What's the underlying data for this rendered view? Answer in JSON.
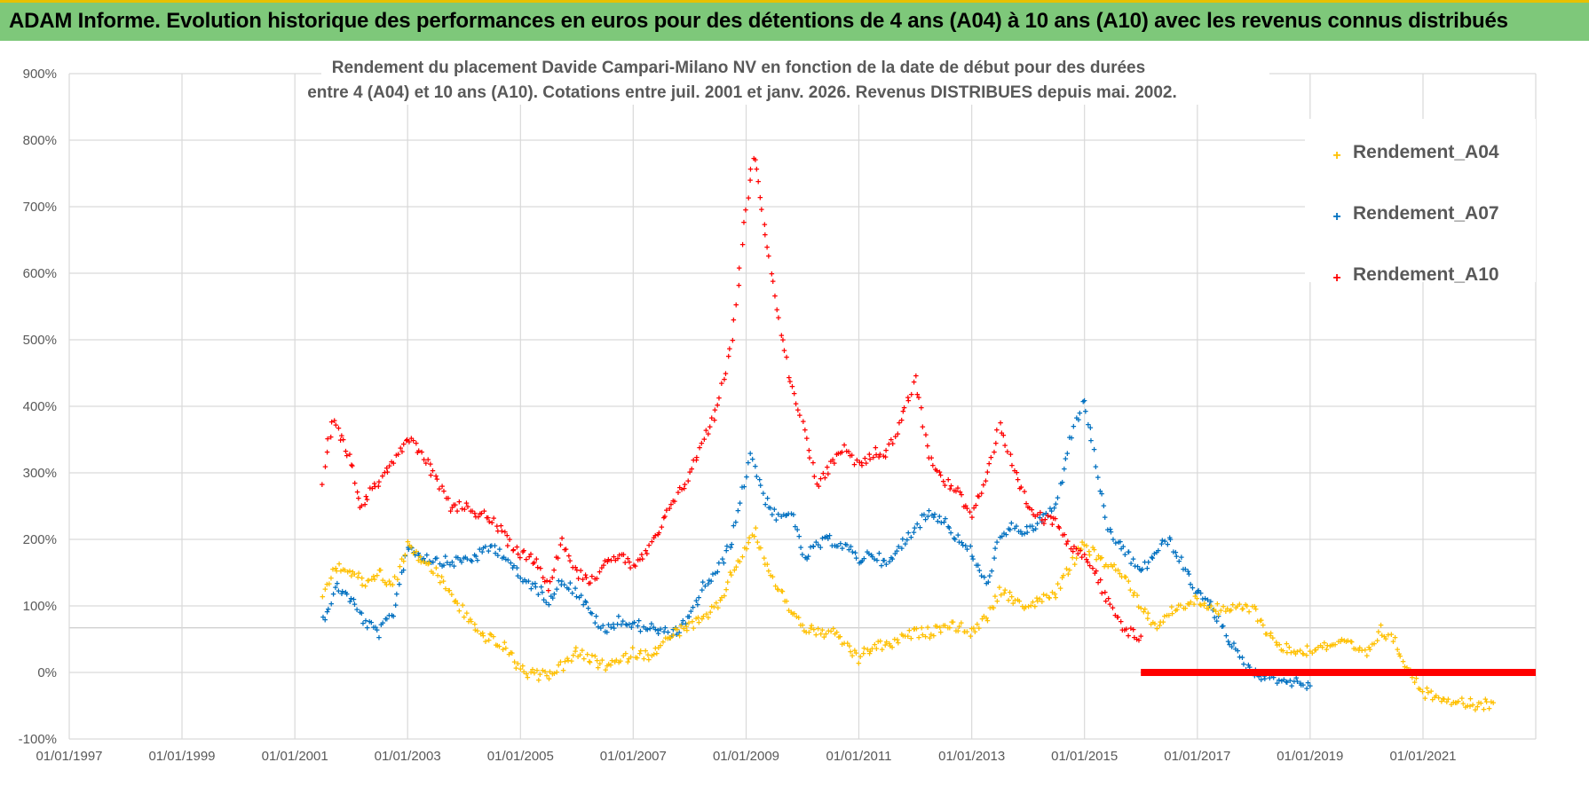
{
  "banner": {
    "title": "ADAM Informe. Evolution historique des performances en euros pour des détentions de 4 ans (A04) à 10 ans (A10) avec les revenus connus distribués",
    "background_color": "#7ec87a",
    "accent_color": "#e8c000"
  },
  "chart_data": {
    "type": "scatter",
    "title_lines": [
      "Rendement du placement Davide Campari-Milano NV en fonction de la date de début pour des durées",
      "entre 4 (A04) et 10 ans (A10).  Cotations entre juil. 2001 et janv. 2026. Revenus DISTRIBUES depuis mai. 2002."
    ],
    "x_axis": {
      "type": "date",
      "range": [
        "1997-01-01",
        "2023-01-01"
      ],
      "tick_labels": [
        "01/01/1997",
        "01/01/1999",
        "01/01/2001",
        "01/01/2003",
        "01/01/2005",
        "01/01/2007",
        "01/01/2009",
        "01/01/2011",
        "01/01/2013",
        "01/01/2015",
        "01/01/2017",
        "01/01/2019",
        "01/01/2021"
      ]
    },
    "y_axis": {
      "unit": "%",
      "range": [
        -100,
        900
      ],
      "tick_values": [
        -100,
        0,
        100,
        200,
        300,
        400,
        500,
        600,
        700,
        800,
        900
      ],
      "tick_labels": [
        "-100%",
        "0%",
        "100%",
        "200%",
        "300%",
        "400%",
        "500%",
        "600%",
        "700%",
        "800%",
        "900%"
      ]
    },
    "grid": true,
    "legend_position": "top-right",
    "marker": "+",
    "series": [
      {
        "name": "Rendement_A04",
        "color": "#ffc000",
        "points": [
          [
            "2001-07-01",
            120
          ],
          [
            "2001-10-01",
            160
          ],
          [
            "2002-01-01",
            150
          ],
          [
            "2002-04-01",
            135
          ],
          [
            "2002-07-01",
            150
          ],
          [
            "2002-10-01",
            130
          ],
          [
            "2003-01-01",
            190
          ],
          [
            "2003-04-01",
            170
          ],
          [
            "2003-07-01",
            150
          ],
          [
            "2003-10-01",
            120
          ],
          [
            "2004-01-01",
            90
          ],
          [
            "2004-04-01",
            60
          ],
          [
            "2004-07-01",
            50
          ],
          [
            "2004-10-01",
            35
          ],
          [
            "2005-01-01",
            5
          ],
          [
            "2005-04-01",
            -5
          ],
          [
            "2005-07-01",
            -2
          ],
          [
            "2005-10-01",
            10
          ],
          [
            "2006-01-01",
            30
          ],
          [
            "2006-04-01",
            20
          ],
          [
            "2006-07-01",
            10
          ],
          [
            "2006-10-01",
            15
          ],
          [
            "2007-01-01",
            30
          ],
          [
            "2007-04-01",
            25
          ],
          [
            "2007-07-01",
            40
          ],
          [
            "2007-10-01",
            60
          ],
          [
            "2008-01-01",
            70
          ],
          [
            "2008-04-01",
            80
          ],
          [
            "2008-07-01",
            100
          ],
          [
            "2008-10-01",
            150
          ],
          [
            "2009-01-01",
            190
          ],
          [
            "2009-03-01",
            210
          ],
          [
            "2009-06-01",
            150
          ],
          [
            "2009-10-01",
            100
          ],
          [
            "2010-01-01",
            70
          ],
          [
            "2010-04-01",
            60
          ],
          [
            "2010-07-01",
            60
          ],
          [
            "2010-10-01",
            45
          ],
          [
            "2011-01-01",
            20
          ],
          [
            "2011-04-01",
            40
          ],
          [
            "2011-07-01",
            40
          ],
          [
            "2011-10-01",
            50
          ],
          [
            "2012-01-01",
            60
          ],
          [
            "2012-04-01",
            60
          ],
          [
            "2012-07-01",
            70
          ],
          [
            "2012-10-01",
            70
          ],
          [
            "2013-01-01",
            60
          ],
          [
            "2013-04-01",
            80
          ],
          [
            "2013-07-01",
            120
          ],
          [
            "2013-10-01",
            110
          ],
          [
            "2014-01-01",
            100
          ],
          [
            "2014-04-01",
            110
          ],
          [
            "2014-07-01",
            120
          ],
          [
            "2014-10-01",
            160
          ],
          [
            "2015-01-01",
            195
          ],
          [
            "2015-04-01",
            170
          ],
          [
            "2015-07-01",
            160
          ],
          [
            "2015-10-01",
            140
          ],
          [
            "2016-01-01",
            100
          ],
          [
            "2016-04-01",
            70
          ],
          [
            "2016-07-01",
            90
          ],
          [
            "2016-10-01",
            100
          ],
          [
            "2017-01-01",
            110
          ],
          [
            "2017-04-01",
            100
          ],
          [
            "2017-07-01",
            90
          ],
          [
            "2017-10-01",
            100
          ],
          [
            "2018-01-01",
            95
          ],
          [
            "2018-04-01",
            60
          ],
          [
            "2018-07-01",
            40
          ],
          [
            "2018-10-01",
            30
          ],
          [
            "2019-01-01",
            35
          ],
          [
            "2019-04-01",
            40
          ],
          [
            "2019-07-01",
            45
          ],
          [
            "2019-10-01",
            40
          ],
          [
            "2020-01-01",
            25
          ],
          [
            "2020-04-01",
            65
          ],
          [
            "2020-07-01",
            45
          ],
          [
            "2020-10-01",
            5
          ],
          [
            "2021-01-01",
            -30
          ],
          [
            "2021-04-01",
            -35
          ],
          [
            "2021-07-01",
            -40
          ],
          [
            "2021-10-01",
            -45
          ],
          [
            "2022-01-01",
            -50
          ],
          [
            "2022-04-01",
            -45
          ]
        ]
      },
      {
        "name": "Rendement_A07",
        "color": "#0070c0",
        "points": [
          [
            "2001-07-01",
            80
          ],
          [
            "2001-10-01",
            130
          ],
          [
            "2002-01-01",
            110
          ],
          [
            "2002-04-01",
            75
          ],
          [
            "2002-07-01",
            60
          ],
          [
            "2002-10-01",
            90
          ],
          [
            "2003-01-01",
            190
          ],
          [
            "2003-04-01",
            175
          ],
          [
            "2003-07-01",
            170
          ],
          [
            "2003-10-01",
            165
          ],
          [
            "2004-01-01",
            170
          ],
          [
            "2004-04-01",
            175
          ],
          [
            "2004-07-01",
            190
          ],
          [
            "2004-10-01",
            175
          ],
          [
            "2005-01-01",
            140
          ],
          [
            "2005-04-01",
            130
          ],
          [
            "2005-07-01",
            110
          ],
          [
            "2005-10-01",
            140
          ],
          [
            "2006-01-01",
            120
          ],
          [
            "2006-04-01",
            90
          ],
          [
            "2006-07-01",
            60
          ],
          [
            "2006-10-01",
            80
          ],
          [
            "2007-01-01",
            70
          ],
          [
            "2007-04-01",
            70
          ],
          [
            "2007-07-01",
            60
          ],
          [
            "2007-10-01",
            60
          ],
          [
            "2008-01-01",
            80
          ],
          [
            "2008-04-01",
            130
          ],
          [
            "2008-07-01",
            150
          ],
          [
            "2008-10-01",
            200
          ],
          [
            "2009-01-01",
            300
          ],
          [
            "2009-02-01",
            330
          ],
          [
            "2009-05-01",
            260
          ],
          [
            "2009-08-01",
            230
          ],
          [
            "2009-11-01",
            240
          ],
          [
            "2010-01-01",
            170
          ],
          [
            "2010-04-01",
            190
          ],
          [
            "2010-07-01",
            200
          ],
          [
            "2010-10-01",
            190
          ],
          [
            "2011-01-01",
            170
          ],
          [
            "2011-04-01",
            180
          ],
          [
            "2011-07-01",
            160
          ],
          [
            "2011-10-01",
            190
          ],
          [
            "2012-01-01",
            220
          ],
          [
            "2012-04-01",
            240
          ],
          [
            "2012-07-01",
            230
          ],
          [
            "2012-10-01",
            200
          ],
          [
            "2013-01-01",
            180
          ],
          [
            "2013-04-01",
            130
          ],
          [
            "2013-07-01",
            200
          ],
          [
            "2013-10-01",
            220
          ],
          [
            "2014-01-01",
            210
          ],
          [
            "2014-04-01",
            230
          ],
          [
            "2014-07-01",
            250
          ],
          [
            "2014-10-01",
            350
          ],
          [
            "2015-01-01",
            410
          ],
          [
            "2015-03-01",
            330
          ],
          [
            "2015-06-01",
            210
          ],
          [
            "2015-09-01",
            190
          ],
          [
            "2016-01-01",
            150
          ],
          [
            "2016-04-01",
            180
          ],
          [
            "2016-07-01",
            200
          ],
          [
            "2016-10-01",
            160
          ],
          [
            "2017-01-01",
            120
          ],
          [
            "2017-04-01",
            100
          ],
          [
            "2017-07-01",
            60
          ],
          [
            "2017-10-01",
            20
          ],
          [
            "2018-01-01",
            0
          ],
          [
            "2018-04-01",
            -5
          ],
          [
            "2018-07-01",
            -10
          ],
          [
            "2018-10-01",
            -15
          ],
          [
            "2019-01-01",
            -20
          ]
        ]
      },
      {
        "name": "Rendement_A10",
        "color": "#ff0000",
        "points": [
          [
            "2001-07-01",
            290
          ],
          [
            "2001-09-01",
            380
          ],
          [
            "2001-11-01",
            350
          ],
          [
            "2002-01-01",
            320
          ],
          [
            "2002-03-01",
            250
          ],
          [
            "2002-05-01",
            270
          ],
          [
            "2002-08-01",
            300
          ],
          [
            "2002-11-01",
            330
          ],
          [
            "2003-01-01",
            350
          ],
          [
            "2003-04-01",
            330
          ],
          [
            "2003-07-01",
            290
          ],
          [
            "2003-10-01",
            250
          ],
          [
            "2004-01-01",
            250
          ],
          [
            "2004-04-01",
            240
          ],
          [
            "2004-07-01",
            230
          ],
          [
            "2004-10-01",
            200
          ],
          [
            "2005-01-01",
            180
          ],
          [
            "2005-04-01",
            170
          ],
          [
            "2005-07-01",
            130
          ],
          [
            "2005-10-01",
            200
          ],
          [
            "2006-01-01",
            150
          ],
          [
            "2006-04-01",
            140
          ],
          [
            "2006-07-01",
            160
          ],
          [
            "2006-10-01",
            180
          ],
          [
            "2007-01-01",
            160
          ],
          [
            "2007-04-01",
            180
          ],
          [
            "2007-07-01",
            220
          ],
          [
            "2007-10-01",
            260
          ],
          [
            "2008-01-01",
            300
          ],
          [
            "2008-04-01",
            350
          ],
          [
            "2008-07-01",
            400
          ],
          [
            "2008-10-01",
            500
          ],
          [
            "2009-01-01",
            700
          ],
          [
            "2009-02-15",
            780
          ],
          [
            "2009-04-01",
            720
          ],
          [
            "2009-06-01",
            620
          ],
          [
            "2009-08-01",
            530
          ],
          [
            "2009-10-01",
            450
          ],
          [
            "2010-01-01",
            380
          ],
          [
            "2010-04-01",
            280
          ],
          [
            "2010-07-01",
            310
          ],
          [
            "2010-10-01",
            340
          ],
          [
            "2011-01-01",
            310
          ],
          [
            "2011-04-01",
            330
          ],
          [
            "2011-07-01",
            330
          ],
          [
            "2011-10-01",
            380
          ],
          [
            "2012-01-01",
            440
          ],
          [
            "2012-04-01",
            330
          ],
          [
            "2012-07-01",
            290
          ],
          [
            "2012-10-01",
            270
          ],
          [
            "2013-01-01",
            240
          ],
          [
            "2013-04-01",
            290
          ],
          [
            "2013-07-01",
            370
          ],
          [
            "2013-10-01",
            300
          ],
          [
            "2014-01-01",
            250
          ],
          [
            "2014-04-01",
            230
          ],
          [
            "2014-07-01",
            230
          ],
          [
            "2014-10-01",
            190
          ],
          [
            "2015-01-01",
            180
          ],
          [
            "2015-04-01",
            140
          ],
          [
            "2015-07-01",
            90
          ],
          [
            "2015-10-01",
            60
          ],
          [
            "2016-01-01",
            55
          ]
        ],
        "flat_segment": {
          "from": "2016-01-01",
          "to": "2023-01-01",
          "value": 0
        }
      }
    ]
  }
}
